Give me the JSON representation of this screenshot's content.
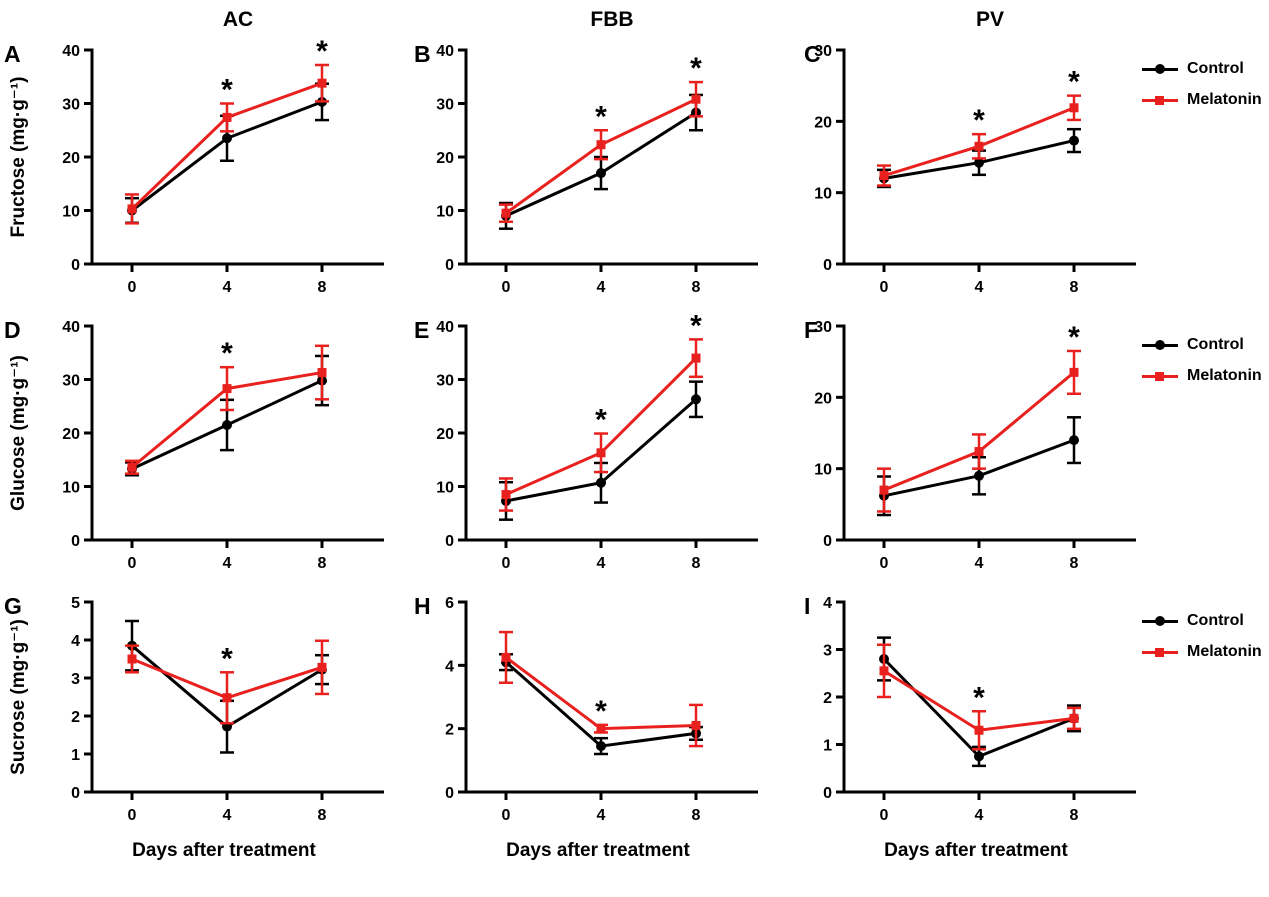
{
  "chart_data": {
    "type": "line",
    "columns": [
      "AC",
      "FBB",
      "PV"
    ],
    "row_ylabels": [
      "Fructose (mg·g⁻¹)",
      "Glucose (mg·g⁻¹)",
      "Sucrose (mg·g⁻¹)"
    ],
    "xlabel": "Days after treatment",
    "x": [
      0,
      4,
      8
    ],
    "series_names": [
      "Control",
      "Melatonin"
    ],
    "series_colors": [
      "#000000",
      "#e8201e"
    ],
    "significance_marker": "*",
    "legend_position": "right-of-each-row",
    "grid": false,
    "panels": [
      {
        "letter": "A",
        "column": "AC",
        "measure": "Fructose",
        "ylim": [
          0,
          40
        ],
        "yticks": [
          0,
          10,
          20,
          30,
          40
        ],
        "series": [
          {
            "name": "Control",
            "y": [
              10.0,
              23.5,
              30.3
            ],
            "err": [
              2.3,
              4.2,
              3.4
            ]
          },
          {
            "name": "Melatonin",
            "y": [
              10.3,
              27.4,
              33.8
            ],
            "err": [
              2.7,
              2.6,
              3.4
            ]
          }
        ],
        "sig_at_x": [
          4,
          8
        ]
      },
      {
        "letter": "B",
        "column": "FBB",
        "measure": "Fructose",
        "ylim": [
          0,
          40
        ],
        "yticks": [
          0,
          10,
          20,
          30,
          40
        ],
        "series": [
          {
            "name": "Control",
            "y": [
              9.0,
              17.0,
              28.3
            ],
            "err": [
              2.4,
              3.0,
              3.3
            ]
          },
          {
            "name": "Melatonin",
            "y": [
              9.5,
              22.3,
              30.8
            ],
            "err": [
              1.6,
              2.7,
              3.2
            ]
          }
        ],
        "sig_at_x": [
          4,
          8
        ]
      },
      {
        "letter": "C",
        "column": "PV",
        "measure": "Fructose",
        "ylim": [
          0,
          30
        ],
        "yticks": [
          0,
          10,
          20,
          30
        ],
        "series": [
          {
            "name": "Control",
            "y": [
              12.0,
              14.2,
              17.3
            ],
            "err": [
              1.2,
              1.7,
              1.6
            ]
          },
          {
            "name": "Melatonin",
            "y": [
              12.4,
              16.5,
              21.9
            ],
            "err": [
              1.4,
              1.7,
              1.7
            ]
          }
        ],
        "sig_at_x": [
          4,
          8
        ]
      },
      {
        "letter": "D",
        "column": "AC",
        "measure": "Glucose",
        "ylim": [
          0,
          40
        ],
        "yticks": [
          0,
          10,
          20,
          30,
          40
        ],
        "series": [
          {
            "name": "Control",
            "y": [
              13.3,
              21.5,
              29.8
            ],
            "err": [
              1.2,
              4.7,
              4.6
            ]
          },
          {
            "name": "Melatonin",
            "y": [
              13.6,
              28.3,
              31.3
            ],
            "err": [
              1.2,
              4.0,
              5.0
            ]
          }
        ],
        "sig_at_x": [
          4
        ]
      },
      {
        "letter": "E",
        "column": "FBB",
        "measure": "Glucose",
        "ylim": [
          0,
          40
        ],
        "yticks": [
          0,
          10,
          20,
          30,
          40
        ],
        "series": [
          {
            "name": "Control",
            "y": [
              7.3,
              10.7,
              26.3
            ],
            "err": [
              3.5,
              3.7,
              3.3
            ]
          },
          {
            "name": "Melatonin",
            "y": [
              8.5,
              16.3,
              34.0
            ],
            "err": [
              3.0,
              3.6,
              3.5
            ]
          }
        ],
        "sig_at_x": [
          4,
          8
        ]
      },
      {
        "letter": "F",
        "column": "PV",
        "measure": "Glucose",
        "ylim": [
          0,
          30
        ],
        "yticks": [
          0,
          10,
          20,
          30
        ],
        "series": [
          {
            "name": "Control",
            "y": [
              6.2,
              9.0,
              14.0
            ],
            "err": [
              2.7,
              2.6,
              3.2
            ]
          },
          {
            "name": "Melatonin",
            "y": [
              7.0,
              12.4,
              23.5
            ],
            "err": [
              3.0,
              2.4,
              3.0
            ]
          }
        ],
        "sig_at_x": [
          8
        ]
      },
      {
        "letter": "G",
        "column": "AC",
        "measure": "Sucrose",
        "ylim": [
          0,
          5
        ],
        "yticks": [
          0,
          1,
          2,
          3,
          4,
          5
        ],
        "series": [
          {
            "name": "Control",
            "y": [
              3.85,
              1.72,
              3.22
            ],
            "err": [
              0.65,
              0.68,
              0.38
            ]
          },
          {
            "name": "Melatonin",
            "y": [
              3.5,
              2.48,
              3.28
            ],
            "err": [
              0.35,
              0.67,
              0.7
            ]
          }
        ],
        "sig_at_x": [
          4
        ]
      },
      {
        "letter": "H",
        "column": "FBB",
        "measure": "Sucrose",
        "ylim": [
          0,
          6
        ],
        "yticks": [
          0,
          2,
          4,
          6
        ],
        "series": [
          {
            "name": "Control",
            "y": [
              4.1,
              1.45,
              1.85
            ],
            "err": [
              0.25,
              0.25,
              0.2
            ]
          },
          {
            "name": "Melatonin",
            "y": [
              4.25,
              2.0,
              2.1
            ],
            "err": [
              0.8,
              0.12,
              0.65
            ]
          }
        ],
        "sig_at_x": [
          4
        ]
      },
      {
        "letter": "I",
        "column": "PV",
        "measure": "Sucrose",
        "ylim": [
          0,
          4
        ],
        "yticks": [
          0,
          1,
          2,
          3,
          4
        ],
        "series": [
          {
            "name": "Control",
            "y": [
              2.8,
              0.75,
              1.55
            ],
            "err": [
              0.45,
              0.2,
              0.27
            ]
          },
          {
            "name": "Melatonin",
            "y": [
              2.55,
              1.3,
              1.55
            ],
            "err": [
              0.55,
              0.4,
              0.22
            ]
          }
        ],
        "sig_at_x": [
          4
        ]
      }
    ]
  }
}
